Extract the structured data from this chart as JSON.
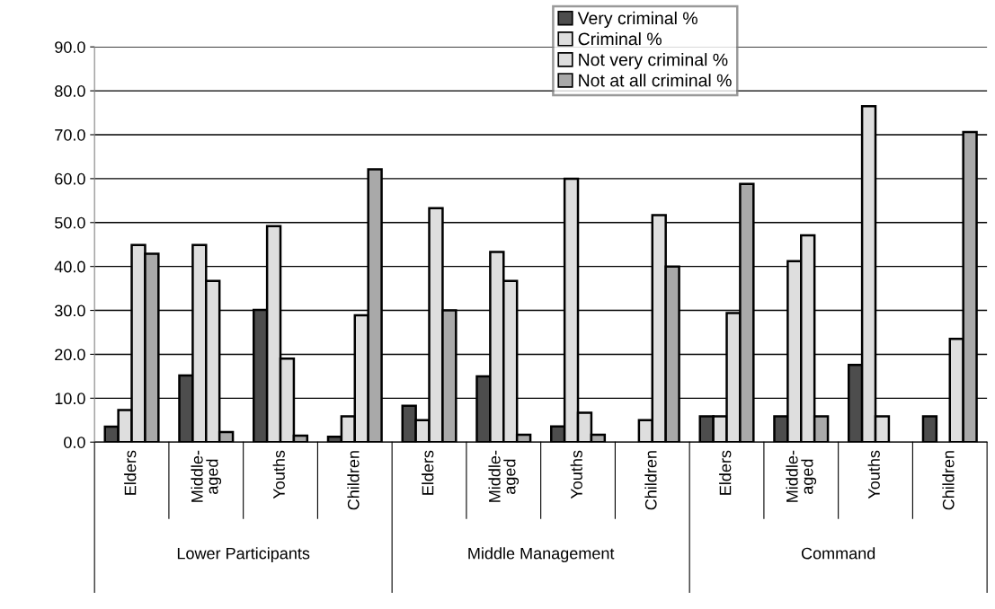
{
  "chart_data": {
    "type": "bar",
    "categories": [
      "Elders",
      "Middle-aged",
      "Youths",
      "Children",
      "Elders",
      "Middle-aged",
      "Youths",
      "Children",
      "Elders",
      "Middle-aged",
      "Youths",
      "Children"
    ],
    "series": [
      {
        "name": "Very criminal %",
        "color": "#4d4d4d",
        "values": [
          3.5,
          15.2,
          30.1,
          1.2,
          8.3,
          15.0,
          3.6,
          null,
          5.9,
          5.9,
          17.6,
          5.9
        ]
      },
      {
        "name": "Criminal %",
        "color": "#dedede",
        "values": [
          7.3,
          44.9,
          49.2,
          5.9,
          5.0,
          43.3,
          60.0,
          5.0,
          5.9,
          41.2,
          76.5,
          null
        ]
      },
      {
        "name": "Not very criminal %",
        "color": "#dedede",
        "values": [
          44.9,
          36.7,
          19.0,
          28.9,
          53.3,
          36.7,
          6.7,
          51.7,
          29.4,
          47.1,
          5.9,
          23.5
        ]
      },
      {
        "name": "Not at all criminal %",
        "color": "#a9a9a9",
        "values": [
          42.9,
          2.3,
          1.5,
          62.1,
          30.0,
          1.7,
          1.7,
          40.0,
          58.8,
          5.9,
          null,
          70.6
        ]
      }
    ],
    "annotations": [
      "Lower Participants",
      "Middle Management",
      "Command"
    ],
    "ylim": [
      0,
      90
    ],
    "yticks": [
      {
        "value": 0,
        "label": "0.0"
      },
      {
        "value": 10,
        "label": "10.0"
      },
      {
        "value": 20,
        "label": "20.0"
      },
      {
        "value": 30,
        "label": "30.0"
      },
      {
        "value": 40,
        "label": "40.0"
      },
      {
        "value": 50,
        "label": "50.0"
      },
      {
        "value": 60,
        "label": "60.0"
      },
      {
        "value": 70,
        "label": "70.0"
      },
      {
        "value": 80,
        "label": "80.0"
      },
      {
        "value": 90,
        "label": "90.0"
      }
    ],
    "grid": "y",
    "legend": "top"
  }
}
